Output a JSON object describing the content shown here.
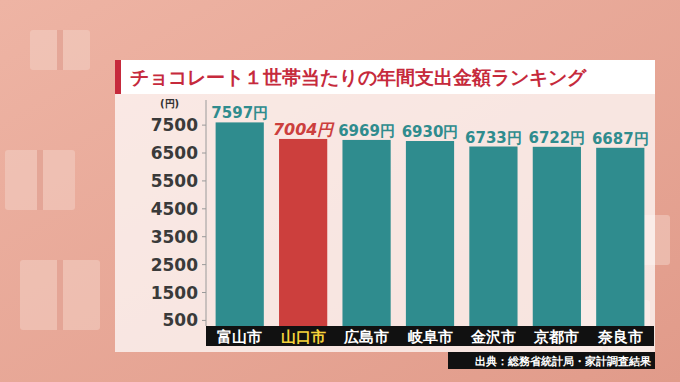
{
  "chart_data": {
    "type": "bar",
    "title": "チョコレート１世帯当たりの年間支出金額ランキング",
    "ylabel": "(円)",
    "categories": [
      "富山市",
      "山口市",
      "広島市",
      "岐阜市",
      "金沢市",
      "京都市",
      "奈良市"
    ],
    "values": [
      7597,
      7004,
      6969,
      6930,
      6733,
      6722,
      6687
    ],
    "value_labels": [
      "7597円",
      "7004円",
      "6969円",
      "6930円",
      "6733円",
      "6722円",
      "6687円"
    ],
    "colors": [
      "#2f8c8e",
      "#cc3f3d",
      "#2f8c8e",
      "#2f8c8e",
      "#2f8c8e",
      "#2f8c8e",
      "#2f8c8e"
    ],
    "ylim": [
      300,
      8400
    ],
    "yticks": [
      500,
      1500,
      2500,
      3500,
      4500,
      5500,
      6500,
      7500
    ],
    "grid": false,
    "data_labels": true,
    "annotations": [
      "出典：総務省統計局・家計調査結果"
    ]
  }
}
